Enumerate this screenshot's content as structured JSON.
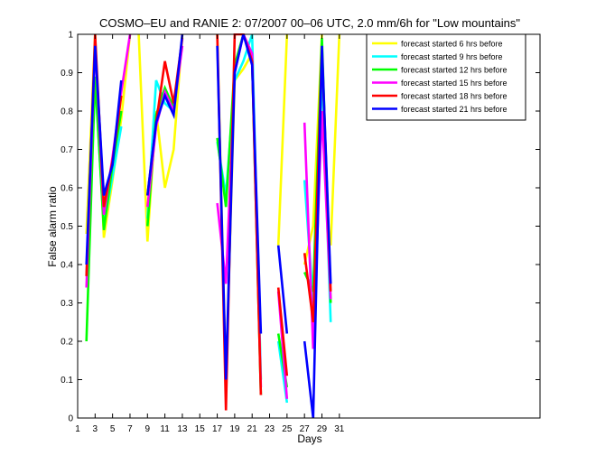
{
  "chart_data": {
    "type": "line",
    "title": "COSMO–EU and RANIE 2: 07/2007 00–06 UTC, 2.0 mm/6h for \"Low mountains\"",
    "xlabel": "Days",
    "ylabel": "False alarm ratio",
    "xlim": [
      1,
      54
    ],
    "ylim": [
      0,
      1
    ],
    "x_ticks": [
      1,
      3,
      5,
      7,
      9,
      11,
      13,
      15,
      17,
      19,
      21,
      23,
      25,
      27,
      29,
      31
    ],
    "y_ticks": [
      0,
      0.1,
      0.2,
      0.3,
      0.4,
      0.5,
      0.6,
      0.7,
      0.8,
      0.9,
      1
    ],
    "grid": false,
    "legend_position": "top-right",
    "series": [
      {
        "name": "forecast started 6 hrs before",
        "color": "#ffff00",
        "segments": [
          [
            [
              2,
              0.48
            ],
            [
              3,
              1
            ],
            [
              4,
              0.47
            ],
            [
              5,
              0.62
            ],
            [
              6,
              0.78
            ],
            [
              7,
              1
            ]
          ],
          [
            [
              8,
              1
            ],
            [
              9,
              0.46
            ],
            [
              10,
              0.8
            ],
            [
              11,
              0.6
            ],
            [
              12,
              0.7
            ],
            [
              13,
              1
            ]
          ],
          [
            [
              17,
              1
            ],
            [
              18,
              0.1
            ],
            [
              19,
              0.88
            ],
            [
              20,
              0.91
            ],
            [
              21,
              0.95
            ],
            [
              22,
              0.1
            ]
          ],
          [
            [
              24,
              0.45
            ],
            [
              25,
              1
            ]
          ],
          [
            [
              27,
              0.4
            ],
            [
              28,
              0.5
            ],
            [
              29,
              1
            ]
          ],
          [
            [
              30,
              0.45
            ],
            [
              31,
              1
            ]
          ]
        ]
      },
      {
        "name": "forecast started 9 hrs before",
        "color": "#00ffff",
        "segments": [
          [
            [
              2,
              0.37
            ],
            [
              3,
              0.88
            ],
            [
              4,
              0.5
            ],
            [
              5,
              0.63
            ],
            [
              6,
              0.76
            ]
          ],
          [
            [
              9,
              0.52
            ],
            [
              10,
              0.88
            ],
            [
              11,
              0.82
            ],
            [
              12,
              0.8
            ]
          ],
          [
            [
              17,
              0.72
            ],
            [
              18,
              0.58
            ],
            [
              19,
              0.88
            ],
            [
              20,
              0.93
            ],
            [
              21,
              1
            ],
            [
              22,
              0.1
            ]
          ],
          [
            [
              24,
              0.2
            ],
            [
              25,
              0.04
            ]
          ],
          [
            [
              27,
              0.62
            ],
            [
              28,
              0.3
            ],
            [
              29,
              0.9
            ],
            [
              30,
              0.25
            ]
          ]
        ]
      },
      {
        "name": "forecast started 12 hrs before",
        "color": "#00ff00",
        "segments": [
          [
            [
              2,
              0.2
            ],
            [
              3,
              0.89
            ],
            [
              4,
              0.49
            ],
            [
              5,
              0.66
            ],
            [
              6,
              0.8
            ]
          ],
          [
            [
              9,
              0.5
            ],
            [
              10,
              0.79
            ],
            [
              11,
              0.86
            ],
            [
              12,
              0.81
            ]
          ],
          [
            [
              17,
              0.73
            ],
            [
              18,
              0.55
            ],
            [
              19,
              0.92
            ],
            [
              20,
              1
            ],
            [
              21,
              0.93
            ],
            [
              22,
              0.06
            ]
          ],
          [
            [
              24,
              0.22
            ],
            [
              25,
              0.08
            ]
          ],
          [
            [
              27,
              0.38
            ],
            [
              28,
              0.33
            ],
            [
              29,
              0.99
            ],
            [
              30,
              0.3
            ]
          ]
        ]
      },
      {
        "name": "forecast started 15 hrs before",
        "color": "#ff00ff",
        "segments": [
          [
            [
              2,
              0.34
            ],
            [
              3,
              0.98
            ],
            [
              4,
              0.53
            ],
            [
              5,
              0.68
            ],
            [
              6,
              0.85
            ],
            [
              7,
              1
            ]
          ],
          [
            [
              9,
              0.55
            ],
            [
              10,
              0.76
            ],
            [
              11,
              0.85
            ],
            [
              12,
              0.8
            ],
            [
              13,
              0.97
            ]
          ],
          [
            [
              17,
              0.56
            ],
            [
              18,
              0.35
            ],
            [
              19,
              0.9
            ],
            [
              20,
              1
            ],
            [
              21,
              0.95
            ],
            [
              22,
              0.08
            ]
          ],
          [
            [
              24,
              0.33
            ],
            [
              25,
              0.05
            ]
          ],
          [
            [
              27,
              0.77
            ],
            [
              28,
              0.18
            ],
            [
              29,
              0.8
            ],
            [
              30,
              0.31
            ]
          ]
        ]
      },
      {
        "name": "forecast started 18 hrs before",
        "color": "#ff0000",
        "segments": [
          [
            [
              2,
              0.37
            ],
            [
              3,
              1
            ],
            [
              4,
              0.55
            ],
            [
              5,
              0.67
            ],
            [
              6,
              0.84
            ]
          ],
          [
            [
              9,
              0.58
            ],
            [
              10,
              0.77
            ],
            [
              11,
              0.93
            ],
            [
              12,
              0.82
            ],
            [
              13,
              0.99
            ]
          ],
          [
            [
              17,
              1
            ],
            [
              18,
              0.02
            ],
            [
              19,
              1
            ],
            [
              20,
              1
            ],
            [
              21,
              0.93
            ],
            [
              22,
              0.06
            ]
          ],
          [
            [
              24,
              0.34
            ],
            [
              25,
              0.11
            ]
          ],
          [
            [
              27,
              0.43
            ],
            [
              28,
              0.25
            ],
            [
              29,
              0.96
            ],
            [
              30,
              0.33
            ]
          ]
        ]
      },
      {
        "name": "forecast started 21 hrs before",
        "color": "#0000ff",
        "segments": [
          [
            [
              2,
              0.4
            ],
            [
              3,
              0.97
            ],
            [
              4,
              0.58
            ],
            [
              5,
              0.66
            ],
            [
              6,
              0.88
            ]
          ],
          [
            [
              9,
              0.58
            ],
            [
              10,
              0.77
            ],
            [
              11,
              0.84
            ],
            [
              12,
              0.79
            ],
            [
              13,
              1
            ]
          ],
          [
            [
              17,
              0.97
            ],
            [
              18,
              0.1
            ],
            [
              19,
              0.9
            ],
            [
              20,
              1
            ],
            [
              21,
              0.92
            ],
            [
              22,
              0.22
            ]
          ],
          [
            [
              24,
              0.45
            ],
            [
              25,
              0.22
            ]
          ],
          [
            [
              27,
              0.2
            ],
            [
              28,
              0
            ],
            [
              29,
              0.97
            ],
            [
              30,
              0.35
            ]
          ]
        ]
      }
    ]
  }
}
